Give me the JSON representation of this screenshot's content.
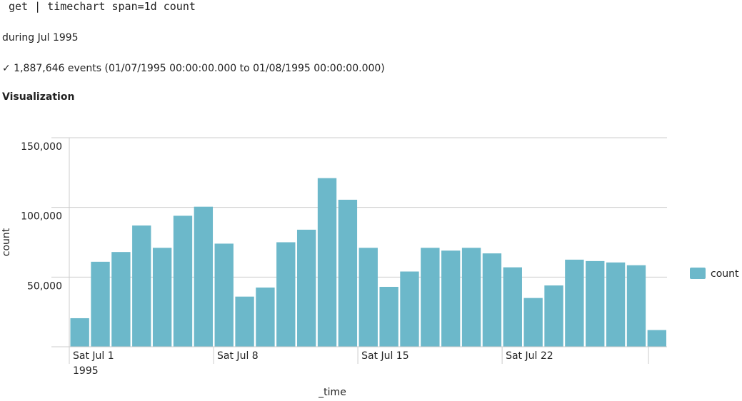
{
  "query": "get | timechart span=1d count",
  "time_range": "during Jul 1995",
  "status": "✓ 1,887,646 events (01/07/1995 00:00:00.000 to 01/08/1995 00:00:00.000)",
  "section_title": "Visualization",
  "chart_data": {
    "type": "bar",
    "x_label": "_time",
    "y_label": "count",
    "categories": [
      "Sat Jul 1",
      null,
      null,
      null,
      null,
      null,
      null,
      "Sat Jul 8",
      null,
      null,
      null,
      null,
      null,
      null,
      "Sat Jul 15",
      null,
      null,
      null,
      null,
      null,
      null,
      "Sat Jul 22",
      null,
      null,
      null,
      null,
      null,
      null,
      null
    ],
    "x_sublabel": "1995",
    "series": [
      {
        "name": "count",
        "color": "#6cb8ca",
        "values": [
          20500,
          61000,
          68000,
          87000,
          71000,
          94000,
          100500,
          74000,
          36000,
          42500,
          75000,
          84000,
          121000,
          105500,
          71000,
          43000,
          54000,
          71000,
          69000,
          71000,
          67000,
          57000,
          35000,
          44000,
          62500,
          61500,
          60500,
          58500,
          12000
        ]
      }
    ],
    "ylim": [
      0,
      150000
    ],
    "yticks": [
      {
        "value": 0,
        "label": ""
      },
      {
        "value": 50000,
        "label": "50,000"
      },
      {
        "value": 100000,
        "label": "100,000"
      },
      {
        "value": 150000,
        "label": "150,000"
      }
    ],
    "grid": true,
    "legend": "right"
  }
}
